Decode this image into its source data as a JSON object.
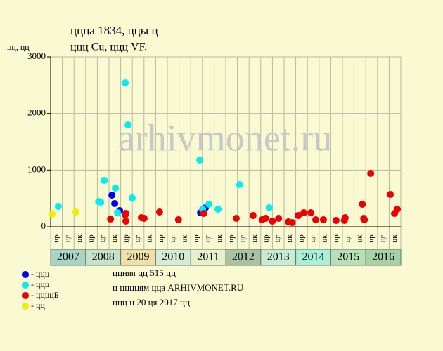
{
  "chart_data": {
    "type": "scatter",
    "title": "ццца 1834, ццы ц",
    "subtitle": "ццц Cu, ццц VF.",
    "y_label": "цц, цц",
    "watermark": "arhivmonet.ru",
    "xlim": [
      2007,
      2017
    ],
    "ylim": [
      0,
      3000
    ],
    "yticks": [
      0,
      1000,
      2000,
      3000
    ],
    "grid": true,
    "categories": [
      "2007",
      "2008",
      "2009",
      "2010",
      "2011",
      "2012",
      "2013",
      "2014",
      "2015",
      "2016"
    ],
    "category_colors": [
      "#a8d4c4",
      "#c4e2c8",
      "#efe1a6",
      "#d4ecd6",
      "#e6f0cc",
      "#a9c3a2",
      "#c6ecd4",
      "#a8f0d6",
      "#b6e0b6",
      "#a6d2a6"
    ],
    "subperiods": [
      "цр",
      "цг",
      "цк"
    ],
    "series": [
      {
        "name": "- ццц",
        "color": "#0000ee",
        "x": [
          2008.75,
          2008.83,
          2008.97,
          2011.28,
          2011.42
        ],
        "values": [
          558,
          409,
          285,
          248,
          335
        ]
      },
      {
        "name": "- ццц",
        "color": "#00eeee",
        "x": [
          2007.22,
          2008.37,
          2008.43,
          2008.53,
          2008.85,
          2008.91,
          2009.13,
          2009.21,
          2009.33,
          2011.26,
          2011.34,
          2011.52,
          2011.78,
          2012.4,
          2013.24
        ],
        "values": [
          360,
          446,
          434,
          818,
          682,
          248,
          2541,
          1797,
          508,
          1178,
          310,
          397,
          310,
          744,
          335
        ]
      },
      {
        "name": "- ццццБ",
        "color": "#ee0000",
        "x": [
          2008.71,
          2009.13,
          2009.15,
          2009.15,
          2009.59,
          2009.67,
          2010.11,
          2010.65,
          2011.37,
          2012.3,
          2012.78,
          2013.04,
          2013.14,
          2013.33,
          2013.51,
          2013.79,
          2013.9,
          2014.07,
          2014.23,
          2014.43,
          2014.57,
          2014.79,
          2015.15,
          2015.39,
          2015.41,
          2015.9,
          2015.94,
          2015.96,
          2016.14,
          2016.7,
          2016.82,
          2016.9
        ],
        "values": [
          136,
          211,
          99,
          235,
          161,
          149,
          260,
          124,
          235,
          149,
          198,
          124,
          149,
          99,
          149,
          87,
          74,
          198,
          248,
          248,
          124,
          124,
          112,
          112,
          161,
          397,
          149,
          124,
          942,
          570,
          235,
          310
        ]
      },
      {
        "name": "- цц",
        "color": "#eeee00",
        "x": [
          2007.04,
          2007.72
        ],
        "values": [
          223,
          260
        ]
      }
    ],
    "notes": [
      "ццняя цц 515 цц",
      "ц ццццям цца ARHIVMONET.RU",
      "ццц ц 20 ця 2017 цц."
    ]
  }
}
